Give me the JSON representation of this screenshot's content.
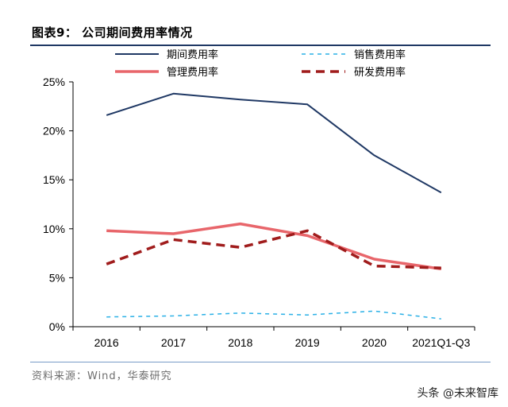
{
  "header": {
    "title": "图表9： 公司期间费用率情况"
  },
  "footer": {
    "source": "资料来源：Wind，华泰研究",
    "watermark": "头条 @未来智库"
  },
  "colors": {
    "period": "#1f3864",
    "sales": "#2ab0e6",
    "mgmt": "#e8666b",
    "rnd": "#a01c1c",
    "axis": "#000000",
    "rule": "#1f3864"
  },
  "chart_data": {
    "type": "line",
    "title": "",
    "xlabel": "",
    "ylabel": "",
    "categories": [
      "2016",
      "2017",
      "2018",
      "2019",
      "2020",
      "2021Q1-Q3"
    ],
    "ylim": [
      0,
      25
    ],
    "yticks": [
      0,
      5,
      10,
      15,
      20,
      25
    ],
    "ytick_labels": [
      "0%",
      "5%",
      "10%",
      "15%",
      "20%",
      "25%"
    ],
    "grid": false,
    "legend_position": "top",
    "series": [
      {
        "key": "period",
        "name": "期间费用率",
        "style": "solid",
        "values": [
          21.6,
          23.8,
          23.2,
          22.7,
          17.5,
          13.7
        ]
      },
      {
        "key": "sales",
        "name": "销售费用率",
        "style": "dashed-thin",
        "values": [
          1.0,
          1.1,
          1.4,
          1.2,
          1.6,
          0.8
        ]
      },
      {
        "key": "mgmt",
        "name": "管理费用率",
        "style": "solid-thick",
        "values": [
          9.8,
          9.5,
          10.5,
          9.3,
          6.9,
          5.9
        ]
      },
      {
        "key": "rnd",
        "name": "研发费用率",
        "style": "dashed-thick",
        "values": [
          6.4,
          8.9,
          8.1,
          9.8,
          6.2,
          6.0
        ]
      }
    ]
  }
}
